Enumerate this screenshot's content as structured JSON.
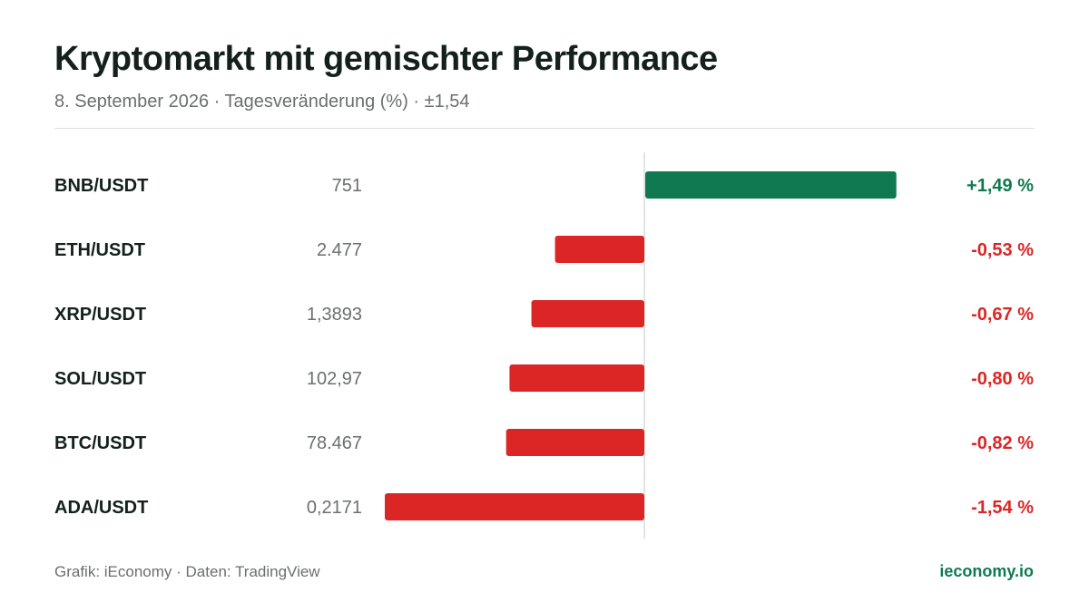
{
  "header": {
    "title": "Kryptomarkt mit gemischter Performance",
    "subtitle": "8. September 2026 · Tagesveränderung (%) · ±1,54"
  },
  "footer": {
    "source": "Grafik: iEconomy · Daten: TradingView",
    "brand": "ieconomy.io"
  },
  "colors": {
    "positive": "#0f7a51",
    "negative": "#dc2626",
    "axis": "#d9dbda"
  },
  "chart_data": {
    "type": "bar",
    "orientation": "horizontal",
    "categories": [
      "BNB/USDT",
      "ETH/USDT",
      "XRP/USDT",
      "SOL/USDT",
      "BTC/USDT",
      "ADA/USDT"
    ],
    "prices": [
      "751",
      "2.477",
      "1,3893",
      "102,97",
      "78.467",
      "0,2171"
    ],
    "values": [
      1.49,
      -0.53,
      -0.67,
      -0.8,
      -0.82,
      -1.54
    ],
    "value_labels": [
      "+1,49 %",
      "-0,53 %",
      "-0,67 %",
      "-0,80 %",
      "-0,82 %",
      "-1,54 %"
    ],
    "xlim": [
      -1.54,
      1.54
    ],
    "grid": false,
    "legend": "none"
  }
}
